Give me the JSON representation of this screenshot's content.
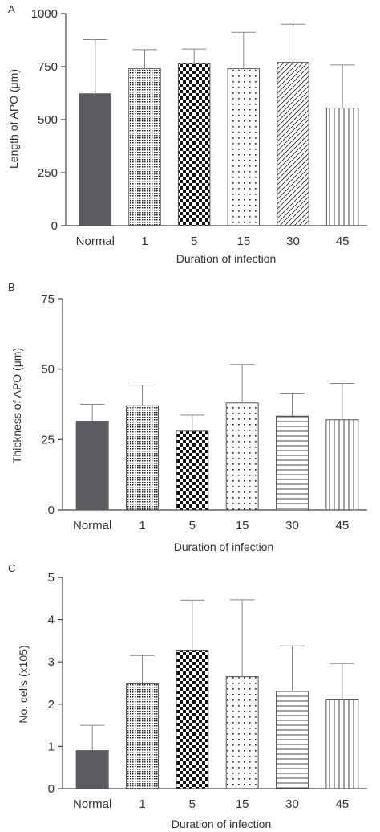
{
  "chart_data": [
    {
      "type": "bar",
      "panel": "A",
      "categories": [
        "Normal",
        "1",
        "5",
        "15",
        "30",
        "45"
      ],
      "values": [
        622,
        740,
        765,
        740,
        770,
        555
      ],
      "errors": [
        255,
        90,
        68,
        172,
        180,
        203
      ],
      "xlabel": "Duration of infection",
      "ylabel": "Length of APO (μm)",
      "ylim": [
        0,
        1000
      ],
      "yticks": [
        "0",
        "250",
        "500",
        "750",
        "1000"
      ],
      "ytick_values": [
        0,
        250,
        500,
        750,
        1000
      ]
    },
    {
      "type": "bar",
      "panel": "B",
      "categories": [
        "Normal",
        "1",
        "5",
        "15",
        "30",
        "45"
      ],
      "values": [
        31.5,
        37,
        28,
        38,
        33.3,
        32
      ],
      "errors": [
        6,
        7.3,
        5.7,
        13.7,
        8.2,
        12.9
      ],
      "xlabel": "Duration of infection",
      "ylabel": "Thickness of APO (μm)",
      "ylim": [
        0,
        75
      ],
      "yticks": [
        "0",
        "25",
        "50",
        "75"
      ],
      "ytick_values": [
        0,
        25,
        50,
        75
      ]
    },
    {
      "type": "bar",
      "panel": "C",
      "categories": [
        "Normal",
        "1",
        "5",
        "15",
        "30",
        "45"
      ],
      "values": [
        0.9,
        2.48,
        3.28,
        2.65,
        2.3,
        2.1
      ],
      "errors": [
        0.6,
        0.67,
        1.18,
        1.82,
        1.08,
        0.86
      ],
      "xlabel": "Duration of infection",
      "ylabel": "No. cells (x105)",
      "ylim": [
        0,
        5
      ],
      "yticks": [
        "0",
        "1",
        "2",
        "3",
        "4",
        "5"
      ],
      "ytick_values": [
        0,
        1,
        2,
        3,
        4,
        5
      ]
    }
  ],
  "bar_styles": {
    "A": [
      "solid",
      "fine-dots",
      "checker",
      "sparse-dots",
      "diagonal",
      "vertical"
    ],
    "B": [
      "solid",
      "fine-dots",
      "checker",
      "sparse-dots",
      "horizontal",
      "vertical"
    ],
    "C": [
      "solid",
      "fine-dots",
      "checker",
      "sparse-dots",
      "horizontal",
      "vertical"
    ]
  },
  "colors": {
    "solid_bar": "#5a5c61",
    "pattern": "#1a1a1a",
    "axis": "#444444",
    "error_bar": "#888888"
  }
}
